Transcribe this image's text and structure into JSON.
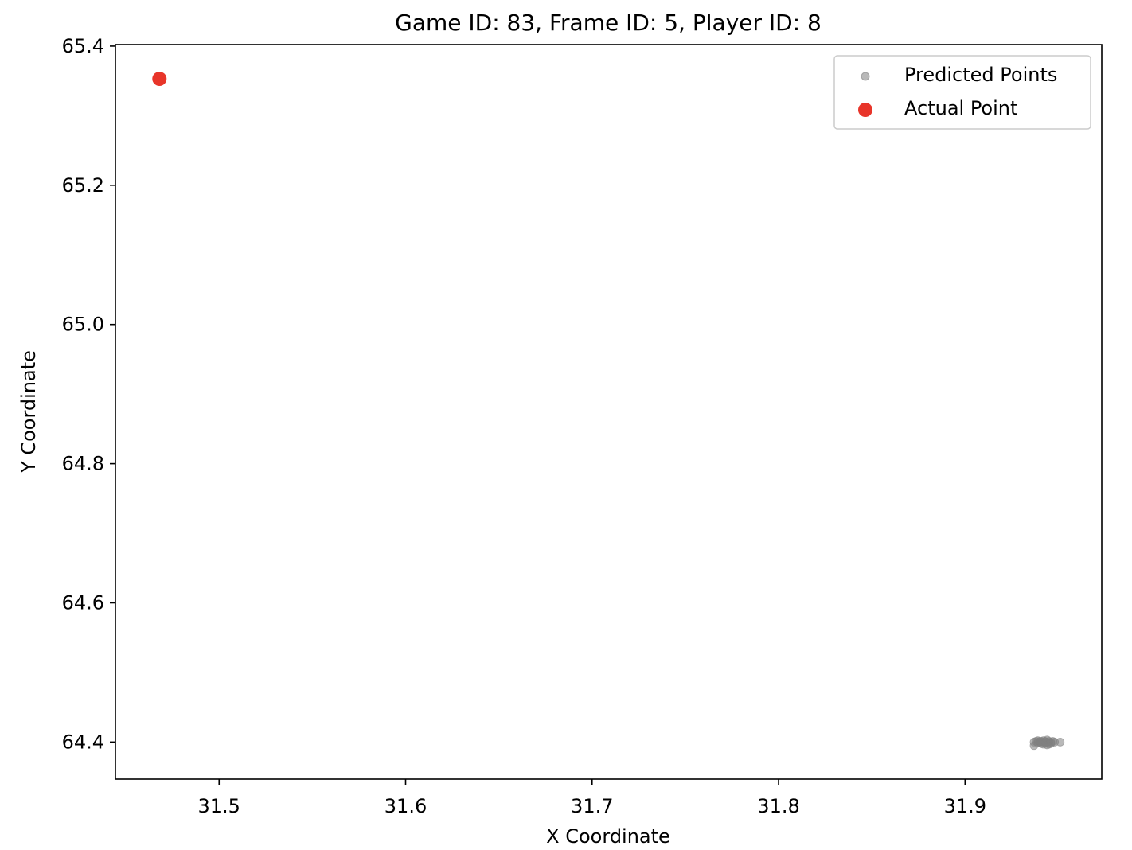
{
  "chart_data": {
    "type": "scatter",
    "title": "Game ID: 83, Frame ID: 5, Player ID: 8",
    "xlabel": "X Coordinate",
    "ylabel": "Y Coordinate",
    "xlim": [
      31.4444,
      31.9733
    ],
    "ylim": [
      64.3467,
      65.4022
    ],
    "xticks": [
      31.5,
      31.6,
      31.7,
      31.8,
      31.9
    ],
    "xtick_labels": [
      "31.5",
      "31.6",
      "31.7",
      "31.8",
      "31.9"
    ],
    "yticks": [
      64.4,
      64.6,
      64.8,
      65.0,
      65.2,
      65.4
    ],
    "ytick_labels": [
      "64.4",
      "64.6",
      "64.8",
      "65.0",
      "65.2",
      "65.4"
    ],
    "grid": false,
    "legend_position": "top-right",
    "series": [
      {
        "name": "Predicted Points",
        "color": "#808080",
        "marker": "small-circle-translucent",
        "points": [
          [
            31.937,
            64.4
          ],
          [
            31.938,
            64.401
          ],
          [
            31.939,
            64.399
          ],
          [
            31.94,
            64.4
          ],
          [
            31.941,
            64.401
          ],
          [
            31.942,
            64.4
          ],
          [
            31.942,
            64.402
          ],
          [
            31.943,
            64.399
          ],
          [
            31.943,
            64.401
          ],
          [
            31.944,
            64.403
          ],
          [
            31.944,
            64.4
          ],
          [
            31.945,
            64.401
          ],
          [
            31.945,
            64.397
          ],
          [
            31.946,
            64.4
          ],
          [
            31.946,
            64.398
          ],
          [
            31.947,
            64.401
          ],
          [
            31.941,
            64.398
          ],
          [
            31.939,
            64.402
          ],
          [
            31.948,
            64.4
          ],
          [
            31.951,
            64.4
          ],
          [
            31.937,
            64.395
          ],
          [
            31.944,
            64.396
          ],
          [
            31.94,
            64.401
          ],
          [
            31.942,
            64.397
          ]
        ]
      },
      {
        "name": "Actual Point",
        "color": "#e8352a",
        "marker": "large-circle",
        "points": [
          [
            31.468,
            65.353
          ]
        ]
      }
    ]
  }
}
